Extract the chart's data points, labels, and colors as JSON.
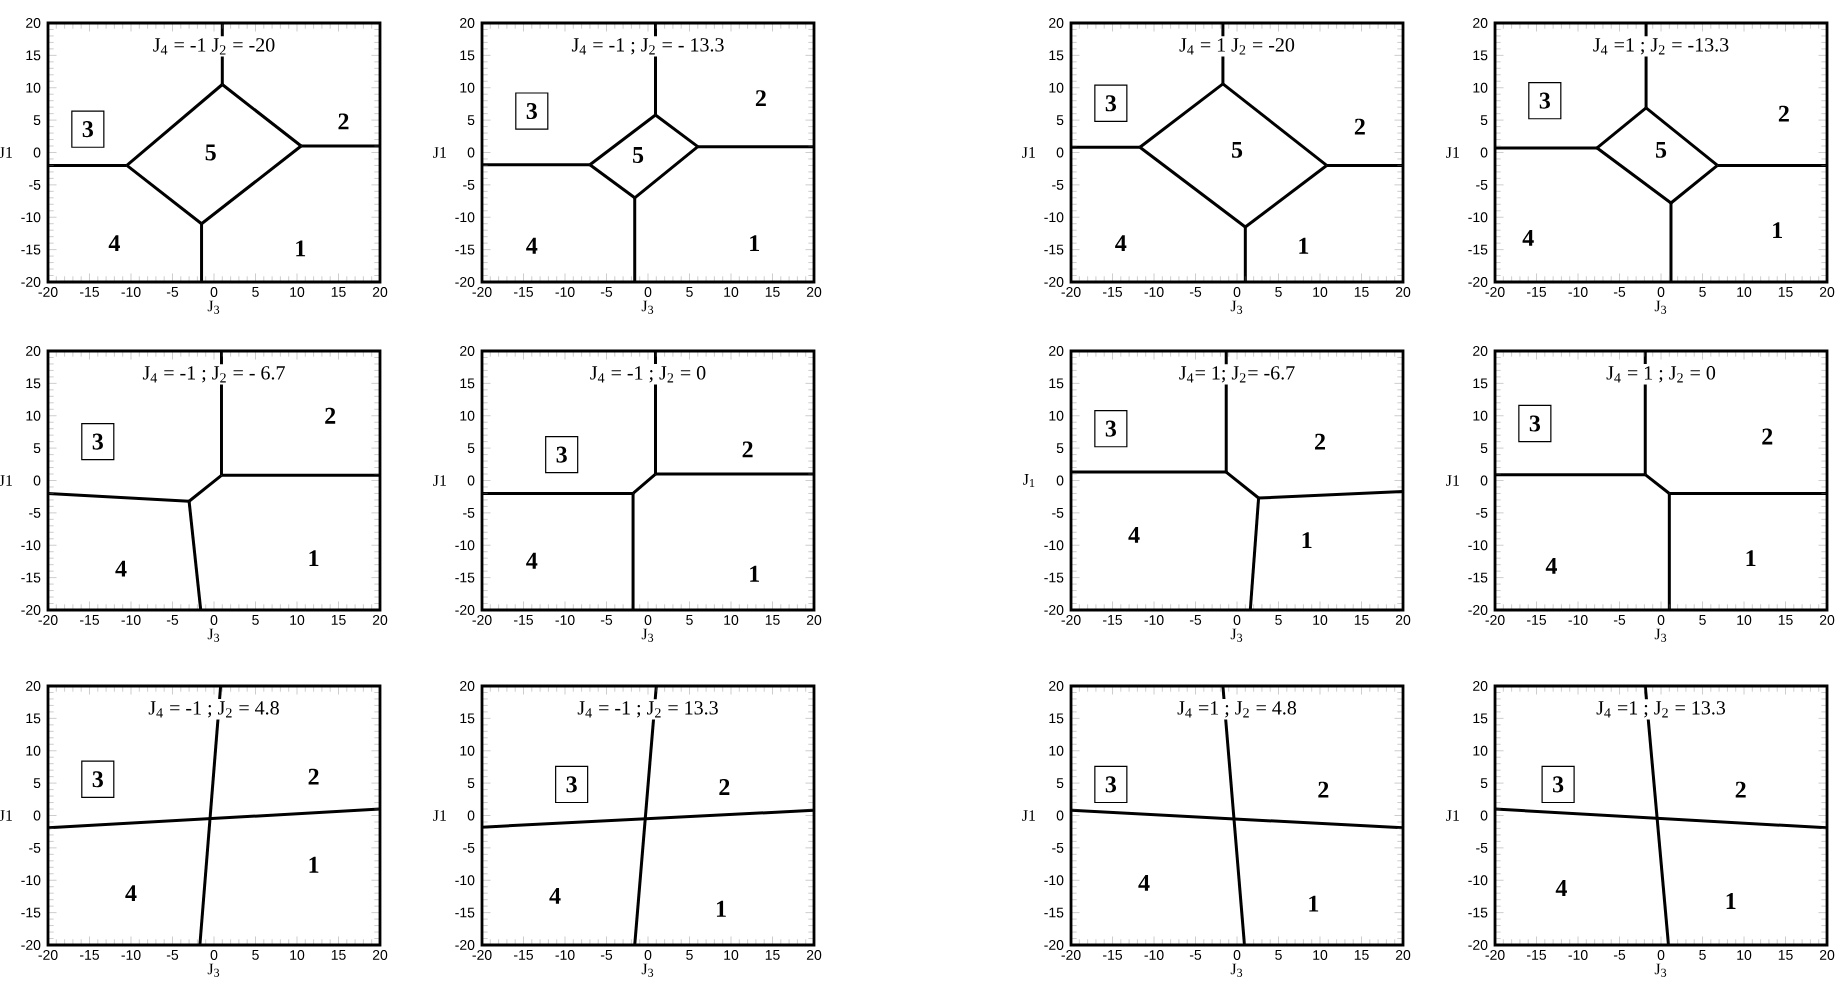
{
  "chart_data": [
    {
      "type": "line",
      "title": "J$_{4}$ = -1  J$_{2}$ = -20",
      "xlabel": "J$_{3}$",
      "ylabel": "J1",
      "xlim": [
        -20,
        20
      ],
      "ylim": [
        -20,
        20
      ],
      "xticks": [
        -20,
        -15,
        -10,
        -5,
        0,
        5,
        10,
        15,
        20
      ],
      "yticks": [
        -20,
        -15,
        -10,
        -5,
        0,
        5,
        10,
        15,
        20
      ],
      "series": [
        {
          "color": "#000000",
          "x": [
            1,
            10.5
          ],
          "values": [
            10.5,
            1
          ]
        },
        {
          "color": "#000000",
          "x": [
            10.5,
            -1.5
          ],
          "values": [
            1,
            -11
          ]
        },
        {
          "color": "#000000",
          "x": [
            -1.5,
            -10.5
          ],
          "values": [
            -11,
            -2
          ]
        },
        {
          "color": "#000000",
          "x": [
            -10.5,
            1
          ],
          "values": [
            -2,
            10.5
          ]
        },
        {
          "color": "#000000",
          "x": [
            1,
            1
          ],
          "values": [
            10.5,
            20
          ]
        },
        {
          "color": "#000000",
          "x": [
            10.5,
            20
          ],
          "values": [
            1,
            1
          ]
        },
        {
          "color": "#000000",
          "x": [
            -1.5,
            -1.5
          ],
          "values": [
            -11,
            -20
          ]
        },
        {
          "color": "#000000",
          "x": [
            -20,
            -10.5
          ],
          "values": [
            -2,
            -2
          ]
        }
      ],
      "annotations": [
        "3",
        "2",
        "5",
        "4",
        "1"
      ]
    },
    {
      "type": "line",
      "title": "J$_{4}$ = -1  ;  J$_{2}$ = - 13.3",
      "xlabel": "J$_{3}$",
      "ylabel": "J1",
      "xlim": [
        -20,
        20
      ],
      "ylim": [
        -20,
        20
      ],
      "xticks": [
        -20,
        -15,
        -10,
        -5,
        0,
        5,
        10,
        15,
        20
      ],
      "yticks": [
        -20,
        -15,
        -10,
        -5,
        0,
        5,
        10,
        15,
        20
      ],
      "series": [
        {
          "color": "#000000",
          "x": [
            0.9,
            6
          ],
          "values": [
            5.8,
            0.9
          ]
        },
        {
          "color": "#000000",
          "x": [
            6,
            -1.6
          ],
          "values": [
            0.9,
            -7
          ]
        },
        {
          "color": "#000000",
          "x": [
            -1.6,
            -7
          ],
          "values": [
            -7,
            -1.9
          ]
        },
        {
          "color": "#000000",
          "x": [
            -7,
            0.9
          ],
          "values": [
            -1.9,
            5.8
          ]
        },
        {
          "color": "#000000",
          "x": [
            0.9,
            0.9
          ],
          "values": [
            5.8,
            20
          ]
        },
        {
          "color": "#000000",
          "x": [
            6,
            20
          ],
          "values": [
            0.9,
            0.9
          ]
        },
        {
          "color": "#000000",
          "x": [
            -1.6,
            -1.6
          ],
          "values": [
            -7,
            -20
          ]
        },
        {
          "color": "#000000",
          "x": [
            -20,
            -7
          ],
          "values": [
            -1.9,
            -1.9
          ]
        }
      ],
      "annotations": [
        "3",
        "2",
        "5",
        "4",
        "1"
      ]
    },
    {
      "type": "line",
      "title": "J$_{4}$ = 1  J$_{2}$ = -20",
      "xlabel": "J$_{3}$",
      "ylabel": "J1",
      "xlim": [
        -20,
        20
      ],
      "ylim": [
        -20,
        20
      ],
      "xticks": [
        -20,
        -15,
        -10,
        -5,
        0,
        5,
        10,
        15,
        20
      ],
      "yticks": [
        -20,
        -15,
        -10,
        -5,
        0,
        5,
        10,
        15,
        20
      ],
      "series": [
        {
          "color": "#000000",
          "x": [
            -1.7,
            10.8
          ],
          "values": [
            10.6,
            -2
          ]
        },
        {
          "color": "#000000",
          "x": [
            10.8,
            1
          ],
          "values": [
            -2,
            -11.5
          ]
        },
        {
          "color": "#000000",
          "x": [
            1,
            -11.7
          ],
          "values": [
            -11.5,
            0.8
          ]
        },
        {
          "color": "#000000",
          "x": [
            -11.7,
            -1.7
          ],
          "values": [
            0.8,
            10.6
          ]
        },
        {
          "color": "#000000",
          "x": [
            -1.7,
            -1.7
          ],
          "values": [
            10.6,
            20
          ]
        },
        {
          "color": "#000000",
          "x": [
            10.8,
            20
          ],
          "values": [
            -2,
            -2
          ]
        },
        {
          "color": "#000000",
          "x": [
            1,
            1
          ],
          "values": [
            -11.5,
            -20
          ]
        },
        {
          "color": "#000000",
          "x": [
            -20,
            -11.7
          ],
          "values": [
            0.8,
            0.8
          ]
        }
      ],
      "annotations": [
        "3",
        "2",
        "5",
        "4",
        "1"
      ]
    },
    {
      "type": "line",
      "title": "J$_{4}$ =1 ; J$_{2}$ = -13.3",
      "xlabel": "J$_{3}$",
      "ylabel": "J1",
      "xlim": [
        -20,
        20
      ],
      "ylim": [
        -20,
        20
      ],
      "xticks": [
        -20,
        -15,
        -10,
        -5,
        0,
        5,
        10,
        15,
        20
      ],
      "yticks": [
        -20,
        -15,
        -10,
        -5,
        0,
        5,
        10,
        15,
        20
      ],
      "series": [
        {
          "color": "#000000",
          "x": [
            -1.8,
            6.8
          ],
          "values": [
            6.9,
            -2
          ]
        },
        {
          "color": "#000000",
          "x": [
            6.8,
            1.2
          ],
          "values": [
            -2,
            -7.8
          ]
        },
        {
          "color": "#000000",
          "x": [
            1.2,
            -7.7
          ],
          "values": [
            -7.8,
            0.7
          ]
        },
        {
          "color": "#000000",
          "x": [
            -7.7,
            -1.8
          ],
          "values": [
            0.7,
            6.9
          ]
        },
        {
          "color": "#000000",
          "x": [
            -1.8,
            -1.8
          ],
          "values": [
            6.9,
            20
          ]
        },
        {
          "color": "#000000",
          "x": [
            6.8,
            20
          ],
          "values": [
            -2,
            -2
          ]
        },
        {
          "color": "#000000",
          "x": [
            1.2,
            1.2
          ],
          "values": [
            -7.8,
            -20
          ]
        },
        {
          "color": "#000000",
          "x": [
            -20,
            -7.7
          ],
          "values": [
            0.7,
            0.7
          ]
        }
      ],
      "annotations": [
        "3",
        "2",
        "5",
        "4",
        "1"
      ]
    },
    {
      "type": "line",
      "title": "J$_{4}$ = -1  ;  J$_{2}$ = - 6.7",
      "xlabel": "J$_{3}$",
      "ylabel": "J1",
      "xlim": [
        -20,
        20
      ],
      "ylim": [
        -20,
        20
      ],
      "xticks": [
        -20,
        -15,
        -10,
        -5,
        0,
        5,
        10,
        15,
        20
      ],
      "yticks": [
        -20,
        -15,
        -10,
        -5,
        0,
        5,
        10,
        15,
        20
      ],
      "series": [
        {
          "color": "#000000",
          "x": [
            0.9,
            0.9
          ],
          "values": [
            20,
            0.8
          ]
        },
        {
          "color": "#000000",
          "x": [
            0.9,
            20
          ],
          "values": [
            0.8,
            0.8
          ]
        },
        {
          "color": "#000000",
          "x": [
            0.9,
            -3
          ],
          "values": [
            0.8,
            -3.2
          ]
        },
        {
          "color": "#000000",
          "x": [
            -20,
            -3
          ],
          "values": [
            -2,
            -3.2
          ]
        },
        {
          "color": "#000000",
          "x": [
            -3,
            -1.6
          ],
          "values": [
            -3.2,
            -20
          ]
        }
      ],
      "annotations": [
        "3",
        "2",
        "4",
        "1"
      ]
    },
    {
      "type": "line",
      "title": "J$_{4}$ = -1  ;  J$_{2}$ = 0",
      "xlabel": "J$_{3}$",
      "ylabel": "J1",
      "xlim": [
        -20,
        20
      ],
      "ylim": [
        -20,
        20
      ],
      "xticks": [
        -20,
        -15,
        -10,
        -5,
        0,
        5,
        10,
        15,
        20
      ],
      "yticks": [
        -20,
        -15,
        -10,
        -5,
        0,
        5,
        10,
        15,
        20
      ],
      "series": [
        {
          "color": "#000000",
          "x": [
            0.9,
            0.9
          ],
          "values": [
            20,
            1
          ]
        },
        {
          "color": "#000000",
          "x": [
            0.9,
            20
          ],
          "values": [
            1,
            1
          ]
        },
        {
          "color": "#000000",
          "x": [
            0.9,
            -1.8
          ],
          "values": [
            1,
            -2
          ]
        },
        {
          "color": "#000000",
          "x": [
            -20,
            -1.8
          ],
          "values": [
            -2,
            -2
          ]
        },
        {
          "color": "#000000",
          "x": [
            -1.8,
            -1.8
          ],
          "values": [
            -2,
            -20
          ]
        }
      ],
      "annotations": [
        "3",
        "2",
        "4",
        "1"
      ]
    },
    {
      "type": "line",
      "title": "J$_{4}$= 1; J$_{2}$= -6.7",
      "xlabel": "J$_{3}$",
      "ylabel": "J$_{1}$",
      "xlim": [
        -20,
        20
      ],
      "ylim": [
        -20,
        20
      ],
      "xticks": [
        -20,
        -15,
        -10,
        -5,
        0,
        5,
        10,
        15,
        20
      ],
      "yticks": [
        -20,
        -15,
        -10,
        -5,
        0,
        5,
        10,
        15,
        20
      ],
      "series": [
        {
          "color": "#000000",
          "x": [
            -1.3,
            -1.3
          ],
          "values": [
            20,
            1.3
          ]
        },
        {
          "color": "#000000",
          "x": [
            -20,
            -1.3
          ],
          "values": [
            1.3,
            1.3
          ]
        },
        {
          "color": "#000000",
          "x": [
            -1.3,
            2.6
          ],
          "values": [
            1.3,
            -2.7
          ]
        },
        {
          "color": "#000000",
          "x": [
            2.6,
            20
          ],
          "values": [
            -2.7,
            -1.7
          ]
        },
        {
          "color": "#000000",
          "x": [
            2.6,
            1.6
          ],
          "values": [
            -2.7,
            -20
          ]
        }
      ],
      "annotations": [
        "3",
        "2",
        "4",
        "1"
      ]
    },
    {
      "type": "line",
      "title": "J$_{4}$ = 1 ; J$_{2}$ = 0",
      "xlabel": "J$_{3}$",
      "ylabel": "J1",
      "xlim": [
        -20,
        20
      ],
      "ylim": [
        -20,
        20
      ],
      "xticks": [
        -20,
        -15,
        -10,
        -5,
        0,
        5,
        10,
        15,
        20
      ],
      "yticks": [
        -20,
        -15,
        -10,
        -5,
        0,
        5,
        10,
        15,
        20
      ],
      "series": [
        {
          "color": "#000000",
          "x": [
            -1.9,
            -1.9
          ],
          "values": [
            20,
            0.9
          ]
        },
        {
          "color": "#000000",
          "x": [
            -20,
            -1.9
          ],
          "values": [
            0.9,
            0.9
          ]
        },
        {
          "color": "#000000",
          "x": [
            -1.9,
            1
          ],
          "values": [
            0.9,
            -2
          ]
        },
        {
          "color": "#000000",
          "x": [
            1,
            20
          ],
          "values": [
            -2,
            -2
          ]
        },
        {
          "color": "#000000",
          "x": [
            1,
            1
          ],
          "values": [
            -2,
            -20
          ]
        }
      ],
      "annotations": [
        "3",
        "2",
        "4",
        "1"
      ]
    },
    {
      "type": "line",
      "title": "J$_{4}$ = -1  ;  J$_{2}$ = 4.8",
      "xlabel": "J$_{3}$",
      "ylabel": "J1",
      "xlim": [
        -20,
        20
      ],
      "ylim": [
        -20,
        20
      ],
      "xticks": [
        -20,
        -15,
        -10,
        -5,
        0,
        5,
        10,
        15,
        20
      ],
      "yticks": [
        -20,
        -15,
        -10,
        -5,
        0,
        5,
        10,
        15,
        20
      ],
      "series": [
        {
          "color": "#000000",
          "x": [
            0.8,
            -1.7
          ],
          "values": [
            20,
            -20
          ]
        },
        {
          "color": "#000000",
          "x": [
            -20,
            20
          ],
          "values": [
            -1.9,
            1
          ]
        }
      ],
      "annotations": [
        "3",
        "2",
        "4",
        "1"
      ]
    },
    {
      "type": "line",
      "title": "J$_{4}$ = -1  ;  J$_{2}$ = 13.3",
      "xlabel": "J$_{3}$",
      "ylabel": "J1",
      "xlim": [
        -20,
        20
      ],
      "ylim": [
        -20,
        20
      ],
      "xticks": [
        -20,
        -15,
        -10,
        -5,
        0,
        5,
        10,
        15,
        20
      ],
      "yticks": [
        -20,
        -15,
        -10,
        -5,
        0,
        5,
        10,
        15,
        20
      ],
      "series": [
        {
          "color": "#000000",
          "x": [
            1,
            -1.6
          ],
          "values": [
            20,
            -20
          ]
        },
        {
          "color": "#000000",
          "x": [
            -20,
            20
          ],
          "values": [
            -1.8,
            0.8
          ]
        }
      ],
      "annotations": [
        "3",
        "2",
        "4",
        "1"
      ]
    },
    {
      "type": "line",
      "title": "J$_{4}$ =1 ; J$_{2}$ = 4.8",
      "xlabel": "J$_{3}$",
      "ylabel": "J1",
      "xlim": [
        -20,
        20
      ],
      "ylim": [
        -20,
        20
      ],
      "xticks": [
        -20,
        -15,
        -10,
        -5,
        0,
        5,
        10,
        15,
        20
      ],
      "yticks": [
        -20,
        -15,
        -10,
        -5,
        0,
        5,
        10,
        15,
        20
      ],
      "series": [
        {
          "color": "#000000",
          "x": [
            -1.7,
            0.9
          ],
          "values": [
            20,
            -20
          ]
        },
        {
          "color": "#000000",
          "x": [
            -20,
            20
          ],
          "values": [
            0.8,
            -1.9
          ]
        }
      ],
      "annotations": [
        "3",
        "2",
        "4",
        "1"
      ]
    },
    {
      "type": "line",
      "title": "J$_{4}$ =1 ; J$_{2}$ = 13.3",
      "xlabel": "J$_{3}$",
      "ylabel": "J1",
      "xlim": [
        -20,
        20
      ],
      "ylim": [
        -20,
        20
      ],
      "xticks": [
        -20,
        -15,
        -10,
        -5,
        0,
        5,
        10,
        15,
        20
      ],
      "yticks": [
        -20,
        -15,
        -10,
        -5,
        0,
        5,
        10,
        15,
        20
      ],
      "series": [
        {
          "color": "#000000",
          "x": [
            -1.9,
            0.9
          ],
          "values": [
            20,
            -20
          ]
        },
        {
          "color": "#000000",
          "x": [
            -20,
            20
          ],
          "values": [
            1,
            -1.9
          ]
        }
      ],
      "annotations": [
        "3",
        "2",
        "4",
        "1"
      ]
    }
  ]
}
